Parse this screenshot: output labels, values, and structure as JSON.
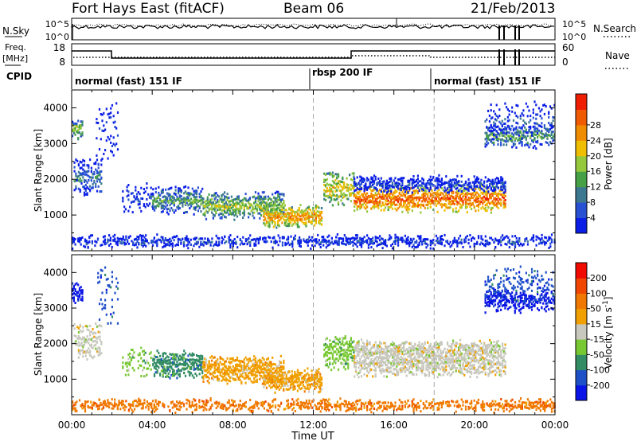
{
  "header": {
    "station": "Fort Hays East (fitACF)",
    "beam": "Beam 06",
    "date": "21/Feb/2013"
  },
  "top_panels": {
    "nsky_label": "N.Sky",
    "nsky_ticks": [
      "10^5",
      "10^0"
    ],
    "nsearch_label": "N.Search",
    "nsearch_ticks": [
      "10^5",
      "10^0"
    ],
    "freq_label": "Freq.",
    "freq_unit": "[MHz]",
    "freq_ticks": [
      "18",
      "8"
    ],
    "nave_label": "Nave",
    "nave_ticks": [
      "60",
      "0"
    ],
    "cpid_label": "CPID",
    "cpid_modes": [
      "normal (fast) 151 IF",
      "rbsp 200 IF",
      "normal (fast) 151 IF"
    ]
  },
  "chart_data": [
    {
      "type": "heatmap",
      "name": "Power",
      "ylabel": "Slant Range [km]",
      "yticks": [
        "1000",
        "2000",
        "3000",
        "4000"
      ],
      "colorbar_label": "Power [dB]",
      "colorbar_ticks": [
        "4",
        "8",
        "12",
        "16",
        "20",
        "24",
        "28"
      ],
      "colorbar_colors": [
        "#0a1ee6",
        "#2850d2",
        "#3c7890",
        "#46a046",
        "#96c83c",
        "#f0be00",
        "#f08c00",
        "#f05a00",
        "#f01e00"
      ]
    },
    {
      "type": "heatmap",
      "name": "Velocity",
      "ylabel": "Slant Range [km]",
      "yticks": [
        "1000",
        "2000",
        "3000",
        "4000"
      ],
      "colorbar_label": "Velocity [m s",
      "colorbar_sup": "-1",
      "colorbar_label_end": "]",
      "colorbar_ticks": [
        "200",
        "100",
        "50",
        "15",
        "-15",
        "-50",
        "-100",
        "-200"
      ],
      "colorbar_colors": [
        "#0a14e6",
        "#1e50c8",
        "#328c64",
        "#78c832",
        "#c8c8be",
        "#f0a000",
        "#f07800",
        "#f04600",
        "#f00a00"
      ]
    }
  ],
  "xaxis": {
    "ticks": [
      "00:00",
      "04:00",
      "08:00",
      "12:00",
      "16:00",
      "20:00",
      "00:00"
    ],
    "label": "Time UT"
  }
}
